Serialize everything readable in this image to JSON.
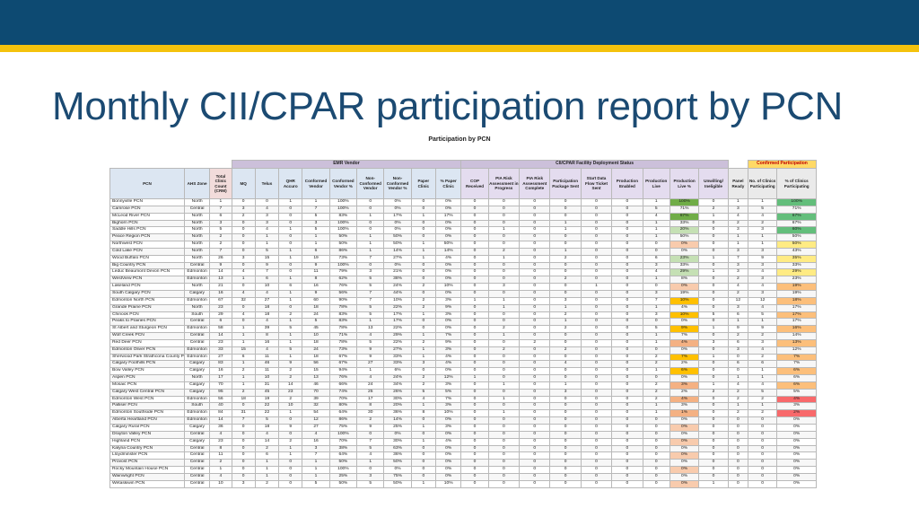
{
  "title": "Monthly CII/CPAR participation report by PCN",
  "subtitle": "Participation by PCN",
  "groups": {
    "emr": "EMR Vendor",
    "cii": "CII/CPAR Facility Deployment Status",
    "conf": "Confirmed Participation"
  },
  "columns": [
    "PCN",
    "AHS Zone",
    "Total Clinic Count (CRM)",
    "MQ",
    "Telus",
    "QHR Accuro",
    "Conformed Vendor",
    "Conformed Vendor %",
    "Non-Conformed Vendor",
    "Non-Conformed Vendor %",
    "Paper Clinic",
    "% Paper Clinic",
    "COP Received",
    "PIA Risk Assessment in Progress",
    "PIA Risk Assessment Complete",
    "Participation Package Sent",
    "Start Data Flow Ticket Sent",
    "Production Enabled",
    "Production Live",
    "Production Live %",
    "Unwilling/ Ineligible",
    "Panel Ready",
    "No. of Clinics Participating",
    "% of Clinics Participating"
  ],
  "rows": [
    [
      "Bonnyville PCN",
      "North",
      "1",
      "0",
      "0",
      "1",
      "1",
      "100%",
      "0",
      "0%",
      "0",
      "0%",
      "0",
      "0",
      "0",
      "0",
      "0",
      "0",
      "1",
      "100%",
      "0",
      "1",
      "1",
      "100%"
    ],
    [
      "Camrose PCN",
      "Central",
      "7",
      "3",
      "4",
      "0",
      "7",
      "100%",
      "0",
      "0%",
      "0",
      "0%",
      "0",
      "0",
      "0",
      "0",
      "0",
      "0",
      "5",
      "71%",
      "2",
      "3",
      "5",
      "71%"
    ],
    [
      "McLeod River PCN",
      "North",
      "6",
      "2",
      "3",
      "0",
      "5",
      "83%",
      "1",
      "17%",
      "1",
      "17%",
      "0",
      "0",
      "0",
      "0",
      "0",
      "0",
      "4",
      "67%",
      "1",
      "4",
      "4",
      "67%"
    ],
    [
      "Bighorn PCN",
      "North",
      "3",
      "0",
      "3",
      "0",
      "3",
      "100%",
      "0",
      "0%",
      "0",
      "0%",
      "0",
      "0",
      "0",
      "1",
      "0",
      "0",
      "1",
      "33%",
      "0",
      "2",
      "2",
      "67%"
    ],
    [
      "Saddle Hills PCN",
      "North",
      "5",
      "0",
      "4",
      "1",
      "5",
      "100%",
      "0",
      "0%",
      "0",
      "0%",
      "0",
      "1",
      "0",
      "1",
      "0",
      "0",
      "1",
      "20%",
      "0",
      "3",
      "3",
      "60%"
    ],
    [
      "Peace Region PCN",
      "North",
      "2",
      "0",
      "1",
      "0",
      "1",
      "50%",
      "1",
      "50%",
      "0",
      "0%",
      "0",
      "0",
      "0",
      "0",
      "0",
      "0",
      "1",
      "50%",
      "0",
      "1",
      "1",
      "50%"
    ],
    [
      "Northwest PCN",
      "North",
      "2",
      "0",
      "1",
      "0",
      "1",
      "50%",
      "1",
      "50%",
      "1",
      "50%",
      "0",
      "0",
      "0",
      "0",
      "0",
      "0",
      "0",
      "0%",
      "0",
      "1",
      "1",
      "50%"
    ],
    [
      "Cold Lake PCN",
      "North",
      "7",
      "0",
      "5",
      "1",
      "6",
      "86%",
      "1",
      "14%",
      "1",
      "14%",
      "0",
      "2",
      "0",
      "1",
      "0",
      "0",
      "0",
      "0%",
      "0",
      "3",
      "3",
      "43%"
    ],
    [
      "Wood Buffalo PCN",
      "North",
      "26",
      "3",
      "15",
      "1",
      "19",
      "73%",
      "7",
      "27%",
      "1",
      "4%",
      "0",
      "1",
      "0",
      "2",
      "0",
      "0",
      "6",
      "23%",
      "1",
      "7",
      "9",
      "35%"
    ],
    [
      "Big Country PCN",
      "Central",
      "9",
      "0",
      "9",
      "0",
      "9",
      "100%",
      "0",
      "0%",
      "0",
      "0%",
      "0",
      "0",
      "0",
      "0",
      "0",
      "0",
      "3",
      "33%",
      "0",
      "3",
      "3",
      "33%"
    ],
    [
      "Leduc Beaumont Devon PCN",
      "Edmonton",
      "14",
      "4",
      "7",
      "0",
      "11",
      "79%",
      "3",
      "21%",
      "0",
      "0%",
      "0",
      "0",
      "0",
      "0",
      "0",
      "0",
      "4",
      "29%",
      "1",
      "3",
      "4",
      "29%"
    ],
    [
      "WestView PCN",
      "Edmonton",
      "13",
      "1",
      "6",
      "1",
      "8",
      "62%",
      "5",
      "38%",
      "0",
      "0%",
      "0",
      "0",
      "0",
      "2",
      "0",
      "0",
      "1",
      "8%",
      "0",
      "2",
      "3",
      "23%"
    ],
    [
      "Lakeland PCN",
      "North",
      "21",
      "0",
      "10",
      "6",
      "16",
      "76%",
      "5",
      "24%",
      "2",
      "10%",
      "0",
      "3",
      "0",
      "0",
      "1",
      "0",
      "0",
      "0%",
      "0",
      "4",
      "4",
      "19%"
    ],
    [
      "South Calgary PCN",
      "Calgary",
      "16",
      "4",
      "4",
      "1",
      "9",
      "56%",
      "7",
      "44%",
      "0",
      "0%",
      "0",
      "0",
      "0",
      "0",
      "0",
      "0",
      "3",
      "19%",
      "0",
      "2",
      "3",
      "19%"
    ],
    [
      "Edmonton North PCN",
      "Edmonton",
      "67",
      "32",
      "27",
      "1",
      "60",
      "90%",
      "7",
      "10%",
      "2",
      "3%",
      "1",
      "1",
      "0",
      "3",
      "0",
      "0",
      "7",
      "10%",
      "0",
      "12",
      "12",
      "18%"
    ],
    [
      "Grande Prairie PCN",
      "North",
      "23",
      "0",
      "18",
      "0",
      "18",
      "78%",
      "5",
      "22%",
      "2",
      "9%",
      "0",
      "1",
      "0",
      "1",
      "0",
      "0",
      "1",
      "4%",
      "0",
      "3",
      "4",
      "17%"
    ],
    [
      "Chinook PCN",
      "South",
      "29",
      "4",
      "18",
      "2",
      "24",
      "83%",
      "5",
      "17%",
      "1",
      "3%",
      "0",
      "0",
      "0",
      "2",
      "0",
      "0",
      "3",
      "10%",
      "5",
      "6",
      "5",
      "17%"
    ],
    [
      "Peaks to Prairies PCN",
      "Central",
      "6",
      "0",
      "4",
      "1",
      "5",
      "83%",
      "1",
      "17%",
      "0",
      "0%",
      "0",
      "0",
      "0",
      "1",
      "0",
      "0",
      "0",
      "0%",
      "0",
      "1",
      "1",
      "17%"
    ],
    [
      "St Albert and Sturgeon PCN",
      "Edmonton",
      "58",
      "1",
      "39",
      "5",
      "45",
      "78%",
      "13",
      "22%",
      "0",
      "0%",
      "0",
      "2",
      "0",
      "2",
      "0",
      "0",
      "5",
      "9%",
      "1",
      "9",
      "9",
      "16%"
    ],
    [
      "Wolf Creek PCN",
      "Central",
      "14",
      "1",
      "8",
      "1",
      "10",
      "71%",
      "4",
      "29%",
      "1",
      "7%",
      "0",
      "1",
      "0",
      "0",
      "0",
      "0",
      "1",
      "7%",
      "0",
      "2",
      "2",
      "14%"
    ],
    [
      "Red Deer PCN",
      "Central",
      "23",
      "1",
      "16",
      "1",
      "18",
      "78%",
      "5",
      "22%",
      "2",
      "9%",
      "0",
      "0",
      "2",
      "0",
      "0",
      "0",
      "1",
      "4%",
      "3",
      "6",
      "3",
      "13%"
    ],
    [
      "Edmonton Oliver PCN",
      "Edmonton",
      "33",
      "15",
      "4",
      "5",
      "24",
      "73%",
      "9",
      "27%",
      "1",
      "3%",
      "0",
      "2",
      "0",
      "2",
      "0",
      "0",
      "0",
      "0%",
      "0",
      "3",
      "4",
      "12%"
    ],
    [
      "Sherwood Park Strathcona County PCN",
      "Edmonton",
      "27",
      "6",
      "11",
      "1",
      "18",
      "67%",
      "9",
      "33%",
      "1",
      "4%",
      "0",
      "0",
      "0",
      "0",
      "0",
      "0",
      "2",
      "7%",
      "1",
      "0",
      "2",
      "7%"
    ],
    [
      "Calgary Foothills PCN",
      "Calgary",
      "83",
      "1",
      "46",
      "9",
      "56",
      "67%",
      "27",
      "33%",
      "3",
      "4%",
      "0",
      "0",
      "0",
      "4",
      "0",
      "0",
      "2",
      "2%",
      "0",
      "6",
      "6",
      "7%"
    ],
    [
      "Bow Valley PCN",
      "Calgary",
      "16",
      "2",
      "11",
      "2",
      "15",
      "94%",
      "1",
      "6%",
      "0",
      "0%",
      "0",
      "0",
      "0",
      "0",
      "0",
      "0",
      "1",
      "6%",
      "0",
      "0",
      "1",
      "6%"
    ],
    [
      "Aspen PCN",
      "North",
      "17",
      "1",
      "10",
      "2",
      "13",
      "76%",
      "4",
      "24%",
      "2",
      "12%",
      "1",
      "0",
      "0",
      "0",
      "0",
      "0",
      "0",
      "0%",
      "0",
      "1",
      "1",
      "6%"
    ],
    [
      "Mosaic PCN",
      "Calgary",
      "70",
      "1",
      "31",
      "14",
      "46",
      "66%",
      "24",
      "34%",
      "2",
      "3%",
      "0",
      "1",
      "0",
      "1",
      "0",
      "0",
      "2",
      "3%",
      "1",
      "4",
      "4",
      "6%"
    ],
    [
      "Calgary West Central PCN",
      "Calgary",
      "95",
      "2",
      "45",
      "23",
      "70",
      "74%",
      "25",
      "26%",
      "5",
      "5%",
      "0",
      "0",
      "0",
      "3",
      "0",
      "0",
      "2",
      "2%",
      "2",
      "2",
      "5",
      "5%"
    ],
    [
      "Edmonton West PCN",
      "Edmonton",
      "56",
      "18",
      "19",
      "2",
      "39",
      "70%",
      "17",
      "30%",
      "4",
      "7%",
      "0",
      "1",
      "0",
      "0",
      "0",
      "0",
      "2",
      "4%",
      "0",
      "2",
      "2",
      "4%"
    ],
    [
      "Palliser PCN",
      "South",
      "40",
      "0",
      "22",
      "10",
      "32",
      "80%",
      "8",
      "20%",
      "1",
      "3%",
      "0",
      "0",
      "0",
      "0",
      "0",
      "0",
      "1",
      "3%",
      "0",
      "1",
      "1",
      "3%"
    ],
    [
      "Edmonton Southside PCN",
      "Edmonton",
      "84",
      "31",
      "22",
      "1",
      "54",
      "64%",
      "30",
      "36%",
      "8",
      "10%",
      "0",
      "1",
      "0",
      "0",
      "0",
      "0",
      "1",
      "1%",
      "0",
      "2",
      "2",
      "2%"
    ],
    [
      "Alberta Heartland PCN",
      "Edmonton",
      "14",
      "7",
      "5",
      "0",
      "12",
      "86%",
      "2",
      "14%",
      "0",
      "0%",
      "0",
      "0",
      "0",
      "0",
      "0",
      "0",
      "0",
      "0%",
      "0",
      "0",
      "0",
      "0%"
    ],
    [
      "Calgary Rural PCN",
      "Calgary",
      "36",
      "0",
      "18",
      "9",
      "27",
      "75%",
      "9",
      "25%",
      "1",
      "3%",
      "0",
      "0",
      "0",
      "0",
      "0",
      "0",
      "0",
      "0%",
      "0",
      "0",
      "0",
      "0%"
    ],
    [
      "Drayton Valley PCN",
      "Central",
      "4",
      "0",
      "4",
      "0",
      "4",
      "100%",
      "0",
      "0%",
      "0",
      "0%",
      "0",
      "0",
      "0",
      "0",
      "0",
      "0",
      "0",
      "0%",
      "0",
      "0",
      "0",
      "0%"
    ],
    [
      "Highland PCN",
      "Calgary",
      "23",
      "0",
      "14",
      "2",
      "16",
      "70%",
      "7",
      "30%",
      "1",
      "4%",
      "0",
      "0",
      "0",
      "0",
      "0",
      "0",
      "0",
      "0%",
      "0",
      "0",
      "0",
      "0%"
    ],
    [
      "Kalyna Country PCN",
      "Central",
      "8",
      "0",
      "2",
      "1",
      "3",
      "38%",
      "5",
      "63%",
      "0",
      "0%",
      "0",
      "0",
      "0",
      "0",
      "0",
      "0",
      "0",
      "0%",
      "0",
      "0",
      "0",
      "0%"
    ],
    [
      "Lloydminster PCN",
      "Central",
      "11",
      "0",
      "6",
      "1",
      "7",
      "64%",
      "4",
      "36%",
      "0",
      "0%",
      "0",
      "0",
      "0",
      "0",
      "0",
      "0",
      "0",
      "0%",
      "0",
      "0",
      "0",
      "0%"
    ],
    [
      "Provost PCN",
      "Central",
      "2",
      "0",
      "1",
      "0",
      "1",
      "50%",
      "1",
      "50%",
      "0",
      "0%",
      "0",
      "0",
      "0",
      "0",
      "0",
      "0",
      "0",
      "0%",
      "0",
      "0",
      "0",
      "0%"
    ],
    [
      "Rocky Mountain House PCN",
      "Central",
      "1",
      "0",
      "1",
      "0",
      "1",
      "100%",
      "0",
      "0%",
      "0",
      "0%",
      "0",
      "0",
      "0",
      "0",
      "0",
      "0",
      "0",
      "0%",
      "0",
      "0",
      "0",
      "0%"
    ],
    [
      "Wainwright PCN",
      "Central",
      "4",
      "0",
      "1",
      "0",
      "1",
      "25%",
      "3",
      "75%",
      "0",
      "0%",
      "0",
      "0",
      "0",
      "0",
      "0",
      "0",
      "0",
      "0%",
      "0",
      "0",
      "0",
      "0%"
    ],
    [
      "Wetaskiwin PCN",
      "Central",
      "10",
      "3",
      "2",
      "0",
      "5",
      "50%",
      "5",
      "50%",
      "1",
      "10%",
      "0",
      "0",
      "0",
      "0",
      "0",
      "0",
      "0",
      "0%",
      "1",
      "0",
      "0",
      "0%"
    ]
  ]
}
